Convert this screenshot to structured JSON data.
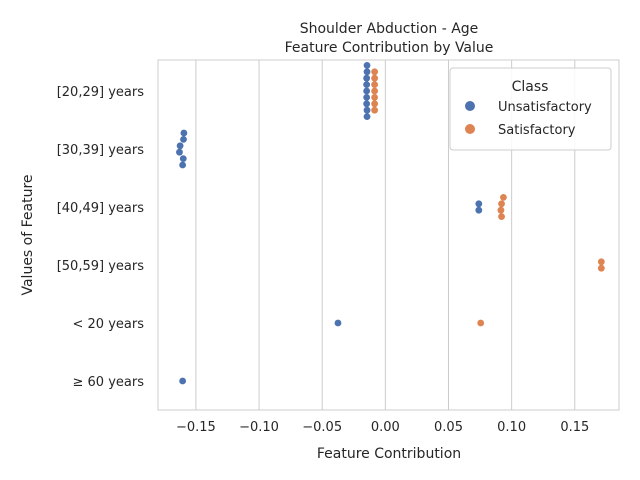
{
  "chart_data": {
    "type": "scatter",
    "title": "Shoulder Abduction - Age",
    "subtitle": "Feature Contribution by Value",
    "xlabel": "Feature Contribution",
    "ylabel": "Values of Feature",
    "xlim": [
      -0.18,
      0.185
    ],
    "xticks": [
      -0.15,
      -0.1,
      -0.05,
      0.0,
      0.05,
      0.1,
      0.15
    ],
    "xtick_labels": [
      "−0.15",
      "−0.10",
      "−0.05",
      "0.00",
      "0.05",
      "0.10",
      "0.15"
    ],
    "categories": [
      "[20,29] years",
      "[30,39] years",
      "[40,49] years",
      "[50,59] years",
      "< 20 years",
      "≥ 60 years"
    ],
    "grid": "vertical",
    "legend": {
      "title": "Class",
      "position": "top-right",
      "entries": [
        {
          "label": "Unsatisfactory",
          "color": "#4c72b0"
        },
        {
          "label": "Satisfactory",
          "color": "#dd8452"
        }
      ]
    },
    "series": [
      {
        "name": "Unsatisfactory",
        "color": "#4c72b0",
        "points": [
          {
            "category": "[20,29] years",
            "value": -0.0145
          },
          {
            "category": "[20,29] years",
            "value": -0.0145
          },
          {
            "category": "[20,29] years",
            "value": -0.0148
          },
          {
            "category": "[20,29] years",
            "value": -0.0148
          },
          {
            "category": "[20,29] years",
            "value": -0.0148
          },
          {
            "category": "[20,29] years",
            "value": -0.0148
          },
          {
            "category": "[20,29] years",
            "value": -0.0148
          },
          {
            "category": "[20,29] years",
            "value": -0.0145
          },
          {
            "category": "[20,29] years",
            "value": -0.0145
          },
          {
            "category": "[30,39] years",
            "value": -0.1595
          },
          {
            "category": "[30,39] years",
            "value": -0.1598
          },
          {
            "category": "[30,39] years",
            "value": -0.1625
          },
          {
            "category": "[30,39] years",
            "value": -0.163
          },
          {
            "category": "[30,39] years",
            "value": -0.16
          },
          {
            "category": "[30,39] years",
            "value": -0.1605
          },
          {
            "category": "[40,49] years",
            "value": 0.074
          },
          {
            "category": "[40,49] years",
            "value": 0.074
          },
          {
            "category": "< 20 years",
            "value": -0.0375
          },
          {
            "category": "≥ 60 years",
            "value": -0.1605
          }
        ]
      },
      {
        "name": "Satisfactory",
        "color": "#dd8452",
        "points": [
          {
            "category": "[20,29] years",
            "value": -0.0085
          },
          {
            "category": "[20,29] years",
            "value": -0.0085
          },
          {
            "category": "[20,29] years",
            "value": -0.0085
          },
          {
            "category": "[20,29] years",
            "value": -0.0085
          },
          {
            "category": "[20,29] years",
            "value": -0.0085
          },
          {
            "category": "[20,29] years",
            "value": -0.0085
          },
          {
            "category": "[20,29] years",
            "value": -0.0085
          },
          {
            "category": "[40,49] years",
            "value": 0.0935
          },
          {
            "category": "[40,49] years",
            "value": 0.092
          },
          {
            "category": "[40,49] years",
            "value": 0.0915
          },
          {
            "category": "[40,49] years",
            "value": 0.092
          },
          {
            "category": "[50,59] years",
            "value": 0.171
          },
          {
            "category": "[50,59] years",
            "value": 0.171
          },
          {
            "category": "< 20 years",
            "value": 0.0755
          }
        ]
      }
    ]
  }
}
